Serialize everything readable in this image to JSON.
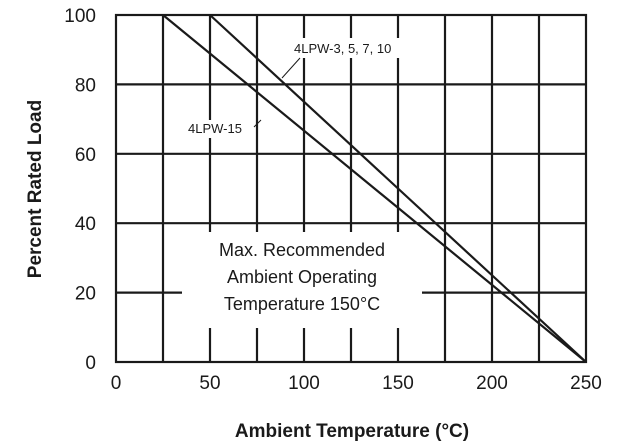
{
  "chart_data": {
    "type": "line",
    "xlabel": "Ambient Temperature (°C)",
    "ylabel": "Percent Rated Load",
    "xlim": [
      0,
      250
    ],
    "ylim": [
      0,
      100
    ],
    "x_ticks": [
      "0",
      "50",
      "100",
      "150",
      "200",
      "250"
    ],
    "y_ticks": [
      "0",
      "20",
      "40",
      "60",
      "80",
      "100"
    ],
    "grid": true,
    "series": [
      {
        "name": "4LPW-3, 5, 7, 10",
        "x": [
          50,
          250
        ],
        "y": [
          100,
          0
        ]
      },
      {
        "name": "4LPW-15",
        "x": [
          25,
          250
        ],
        "y": [
          100,
          0
        ]
      }
    ],
    "annotations": {
      "note_lines": [
        "Max. Recommended",
        "Ambient Operating",
        "Temperature 150°C"
      ]
    }
  }
}
